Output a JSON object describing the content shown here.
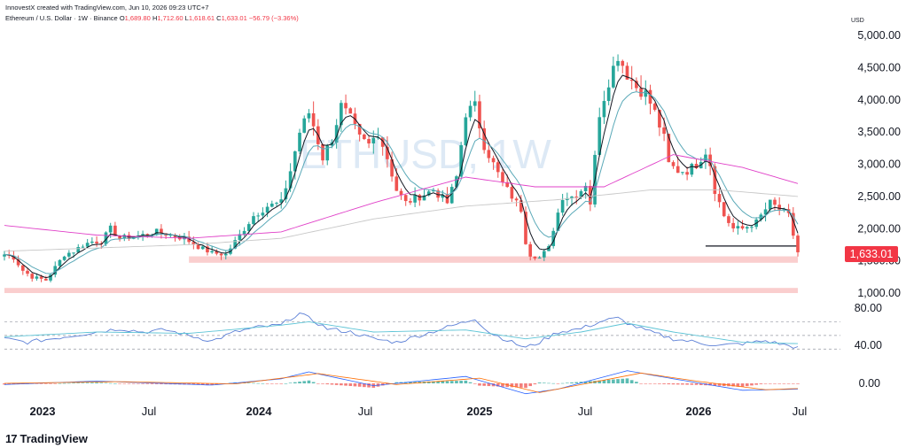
{
  "header": {
    "credit": "InnovestX created with TradingView.com, Jun 10, 2026 09:23 UTC+7",
    "symbol": "Ethereum / U.S. Dollar · 1W · Binance",
    "o_label": "O",
    "o_value": "1,689.80",
    "h_label": "H",
    "h_value": "1,712.60",
    "l_label": "L",
    "l_value": "1,618.61",
    "c_label": "C",
    "c_value": "1,633.01",
    "change": "−56.79 (−3.36%)"
  },
  "watermark": "ETHUSD, 1W",
  "currency": "USD",
  "last_price": "1,633.01",
  "brand": {
    "name": "TradingView",
    "logo_glyph": "17"
  },
  "colors": {
    "up": "#26a69a",
    "down": "#ef5350",
    "ma_fast": "#131722",
    "ma_slow": "#5aa9b8",
    "ma_pink": "#e040c8",
    "ma_grey": "#c8c8c8",
    "zone": "#f9c6c6",
    "rsi": "#5b7fd6",
    "rsi_ma": "#5ec4d6",
    "price_label": "#f23645"
  },
  "chart_data": {
    "type": "candlestick",
    "timeframe": "1W",
    "x_axis_labels": [
      "2023",
      "Jul",
      "2024",
      "Jul",
      "2025",
      "Jul",
      "2026",
      "Jul"
    ],
    "y_axis": {
      "ticks": [
        "5,000.00",
        "4,500.00",
        "4,000.00",
        "3,500.00",
        "3,000.00",
        "2,500.00",
        "2,000.00",
        "1,500.00",
        "1,000.00"
      ],
      "ylim": [
        1000,
        5000
      ]
    },
    "price_path": [
      [
        0,
        1600
      ],
      [
        2,
        1550
      ],
      [
        4,
        1350
      ],
      [
        6,
        1250
      ],
      [
        9,
        1200
      ],
      [
        11,
        1400
      ],
      [
        13,
        1600
      ],
      [
        15,
        1650
      ],
      [
        17,
        1750
      ],
      [
        19,
        1800
      ],
      [
        21,
        1800
      ],
      [
        23,
        2000
      ],
      [
        25,
        1850
      ],
      [
        27,
        1870
      ],
      [
        30,
        1900
      ],
      [
        33,
        1950
      ],
      [
        36,
        1900
      ],
      [
        39,
        1850
      ],
      [
        42,
        1720
      ],
      [
        45,
        1620
      ],
      [
        48,
        1600
      ],
      [
        51,
        1900
      ],
      [
        54,
        2200
      ],
      [
        57,
        2350
      ],
      [
        60,
        2400
      ],
      [
        62,
        2900
      ],
      [
        64,
        3500
      ],
      [
        66,
        3800
      ],
      [
        67,
        3600
      ],
      [
        69,
        3100
      ],
      [
        71,
        3400
      ],
      [
        73,
        3900
      ],
      [
        75,
        3700
      ],
      [
        77,
        3400
      ],
      [
        79,
        3300
      ],
      [
        81,
        3500
      ],
      [
        83,
        3100
      ],
      [
        85,
        2600
      ],
      [
        87,
        2400
      ],
      [
        90,
        2500
      ],
      [
        93,
        2600
      ],
      [
        96,
        2400
      ],
      [
        98,
        2800
      ],
      [
        100,
        3800
      ],
      [
        102,
        3900
      ],
      [
        104,
        3300
      ],
      [
        106,
        3000
      ],
      [
        108,
        2700
      ],
      [
        110,
        2500
      ],
      [
        112,
        2300
      ],
      [
        113,
        1800
      ],
      [
        114,
        1600
      ],
      [
        116,
        1550
      ],
      [
        118,
        1700
      ],
      [
        119,
        2000
      ],
      [
        121,
        2500
      ],
      [
        123,
        2500
      ],
      [
        125,
        2600
      ],
      [
        126,
        2700
      ],
      [
        127,
        2400
      ],
      [
        129,
        3800
      ],
      [
        131,
        4300
      ],
      [
        133,
        4700
      ],
      [
        135,
        4400
      ],
      [
        137,
        4200
      ],
      [
        139,
        4100
      ],
      [
        141,
        3800
      ],
      [
        143,
        3400
      ],
      [
        144,
        3000
      ],
      [
        146,
        2900
      ],
      [
        148,
        2900
      ],
      [
        150,
        3000
      ],
      [
        152,
        3200
      ],
      [
        153,
        3000
      ],
      [
        154,
        2600
      ],
      [
        156,
        2200
      ],
      [
        158,
        2000
      ],
      [
        160,
        2000
      ],
      [
        163,
        2100
      ],
      [
        166,
        2400
      ],
      [
        168,
        2300
      ],
      [
        170,
        2200
      ],
      [
        171,
        1900
      ],
      [
        172,
        1633
      ]
    ],
    "sma_pink_path": [
      [
        0,
        2050
      ],
      [
        20,
        1900
      ],
      [
        40,
        1850
      ],
      [
        60,
        1950
      ],
      [
        80,
        2400
      ],
      [
        100,
        2800
      ],
      [
        115,
        2650
      ],
      [
        130,
        2650
      ],
      [
        145,
        3150
      ],
      [
        160,
        2950
      ],
      [
        172,
        2700
      ]
    ],
    "sma_grey_path": [
      [
        0,
        1650
      ],
      [
        40,
        1750
      ],
      [
        60,
        1850
      ],
      [
        80,
        2150
      ],
      [
        100,
        2350
      ],
      [
        120,
        2450
      ],
      [
        140,
        2600
      ],
      [
        155,
        2600
      ],
      [
        172,
        2500
      ]
    ],
    "support_zones": [
      {
        "x": [
          40,
          172
        ],
        "y": [
          1470,
          1570
        ]
      },
      {
        "x": [
          0,
          172
        ],
        "y": [
          1000,
          1080
        ]
      }
    ],
    "support_line": {
      "x": [
        152,
        172
      ],
      "y": 1730
    },
    "last": 1633.01,
    "rsi": {
      "ticks": [
        "80.00",
        "40.00"
      ],
      "ylim": [
        20,
        90
      ],
      "levels": [
        70,
        50,
        30
      ],
      "path": [
        [
          0,
          45
        ],
        [
          5,
          40
        ],
        [
          10,
          45
        ],
        [
          15,
          50
        ],
        [
          20,
          55
        ],
        [
          25,
          60
        ],
        [
          30,
          55
        ],
        [
          35,
          58
        ],
        [
          40,
          50
        ],
        [
          45,
          42
        ],
        [
          50,
          55
        ],
        [
          55,
          62
        ],
        [
          60,
          65
        ],
        [
          62,
          75
        ],
        [
          64,
          82
        ],
        [
          66,
          75
        ],
        [
          70,
          60
        ],
        [
          75,
          55
        ],
        [
          80,
          45
        ],
        [
          85,
          40
        ],
        [
          90,
          50
        ],
        [
          95,
          60
        ],
        [
          100,
          70
        ],
        [
          102,
          75
        ],
        [
          105,
          55
        ],
        [
          110,
          40
        ],
        [
          113,
          32
        ],
        [
          116,
          40
        ],
        [
          120,
          55
        ],
        [
          125,
          60
        ],
        [
          130,
          72
        ],
        [
          133,
          75
        ],
        [
          136,
          65
        ],
        [
          140,
          55
        ],
        [
          145,
          45
        ],
        [
          150,
          40
        ],
        [
          155,
          35
        ],
        [
          160,
          38
        ],
        [
          165,
          42
        ],
        [
          170,
          35
        ],
        [
          172,
          32
        ]
      ],
      "ma_path": [
        [
          0,
          48
        ],
        [
          20,
          55
        ],
        [
          40,
          53
        ],
        [
          60,
          65
        ],
        [
          66,
          70
        ],
        [
          80,
          55
        ],
        [
          100,
          58
        ],
        [
          113,
          45
        ],
        [
          125,
          55
        ],
        [
          135,
          68
        ],
        [
          145,
          55
        ],
        [
          160,
          40
        ],
        [
          172,
          38
        ]
      ]
    },
    "macd": {
      "ticks": [
        "0.00"
      ],
      "ylim": [
        -1.4,
        1.6
      ],
      "macd_path": [
        [
          0,
          -0.1
        ],
        [
          20,
          0.2
        ],
        [
          45,
          -0.15
        ],
        [
          60,
          0.4
        ],
        [
          66,
          1.0
        ],
        [
          80,
          -0.2
        ],
        [
          100,
          0.6
        ],
        [
          113,
          -0.9
        ],
        [
          120,
          -0.5
        ],
        [
          135,
          1.1
        ],
        [
          145,
          0.4
        ],
        [
          160,
          -0.6
        ],
        [
          172,
          -0.5
        ]
      ],
      "signal_path": [
        [
          0,
          0
        ],
        [
          25,
          0.15
        ],
        [
          50,
          -0.05
        ],
        [
          68,
          0.85
        ],
        [
          85,
          -0.1
        ],
        [
          103,
          0.45
        ],
        [
          116,
          -0.8
        ],
        [
          138,
          0.9
        ],
        [
          150,
          0.2
        ],
        [
          165,
          -0.55
        ],
        [
          172,
          -0.45
        ]
      ]
    }
  }
}
